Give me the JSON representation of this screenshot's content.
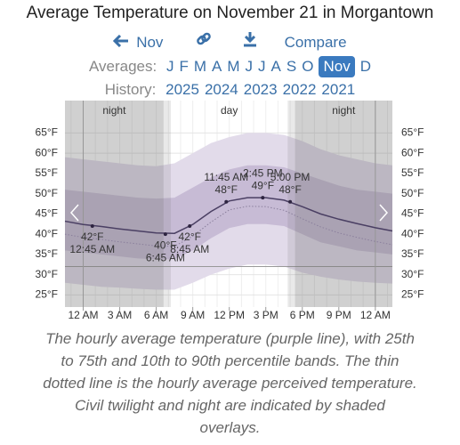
{
  "header": {
    "title": "Average Temperature on November 21 in Morgantown",
    "prev": "Nov",
    "compare": "Compare"
  },
  "averages": {
    "label": "Averages:",
    "months": [
      "J",
      "F",
      "M",
      "A",
      "M",
      "J",
      "J",
      "A",
      "S",
      "O",
      "Nov",
      "D"
    ],
    "selected": 10
  },
  "history": {
    "label": "History:",
    "years": [
      "2025",
      "2024",
      "2023",
      "2022",
      "2021"
    ]
  },
  "chart_data": {
    "type": "line",
    "x": [
      -1.5,
      0,
      1.5,
      3,
      4.5,
      6,
      7.5,
      9,
      10.5,
      12,
      13.5,
      15,
      16.5,
      18,
      19.5,
      21,
      22.5,
      24,
      25.4
    ],
    "xlim": [
      -1.5,
      25.4
    ],
    "xticks": [
      {
        "value": 0,
        "label": "12 AM"
      },
      {
        "value": 3,
        "label": "3 AM"
      },
      {
        "value": 6,
        "label": "6 AM"
      },
      {
        "value": 9,
        "label": "9 AM"
      },
      {
        "value": 12,
        "label": "12 PM"
      },
      {
        "value": 15,
        "label": "3 PM"
      },
      {
        "value": 18,
        "label": "6 PM"
      },
      {
        "value": 21,
        "label": "9 PM"
      },
      {
        "value": 24,
        "label": "12 AM"
      }
    ],
    "ylim": [
      22,
      73
    ],
    "yticks": [
      {
        "value": 25,
        "label": "25°F"
      },
      {
        "value": 30,
        "label": "30°F"
      },
      {
        "value": 35,
        "label": "35°F"
      },
      {
        "value": 40,
        "label": "40°F"
      },
      {
        "value": 45,
        "label": "45°F"
      },
      {
        "value": 50,
        "label": "50°F"
      },
      {
        "value": 55,
        "label": "55°F"
      },
      {
        "value": 60,
        "label": "60°F"
      },
      {
        "value": 65,
        "label": "65°F"
      }
    ],
    "grid": true,
    "freezing": 32,
    "bands": [
      {
        "color": "#e2dbea",
        "lower": [
          28,
          27.5,
          27,
          26.8,
          26.5,
          26.3,
          26.3,
          28,
          30,
          31.5,
          32.5,
          32.5,
          32,
          30.5,
          29.5,
          28.8,
          28.3,
          28,
          27.8
        ],
        "upper": [
          59,
          58.5,
          58,
          57.5,
          57,
          56.8,
          57.5,
          60,
          62.5,
          64,
          65,
          65,
          64.5,
          63,
          61,
          59.5,
          58.5,
          57.5,
          57
        ]
      },
      {
        "color": "#c7bbd5",
        "lower": [
          36,
          35.5,
          35,
          34.5,
          34,
          33.8,
          33.8,
          36,
          39,
          41.5,
          42.5,
          42.5,
          42,
          40,
          38,
          37,
          36,
          35.5,
          35
        ],
        "upper": [
          51,
          50.5,
          50,
          49.5,
          49,
          48.8,
          49,
          51.5,
          54,
          56,
          57,
          57,
          56.5,
          55,
          53.5,
          52,
          51,
          50.5,
          50
        ]
      }
    ],
    "series": [
      {
        "color": "#8a7f9c",
        "style": "dotted",
        "values": [
          40.0,
          39.2,
          38.7,
          38.1,
          37.6,
          37.1,
          37.0,
          39.5,
          43.0,
          46.0,
          46.9,
          46.8,
          45.9,
          43.8,
          41.8,
          40.3,
          39.2,
          38.2,
          37.4
        ]
      },
      {
        "color": "#4a3f63",
        "style": "solid",
        "values": [
          43.2,
          42.4,
          41.9,
          41.3,
          40.8,
          40.3,
          40.2,
          42.4,
          45.6,
          48.2,
          49.0,
          49.0,
          48.4,
          46.8,
          45.0,
          43.7,
          42.6,
          41.6,
          40.8
        ]
      }
    ],
    "regions": [
      {
        "label": "night",
        "start": -1.5,
        "end": 6.6
      },
      {
        "label": "day",
        "start": 7.2,
        "end": 16.8
      },
      {
        "label": "night",
        "start": 17.4,
        "end": 25.4
      }
    ],
    "twilight": [
      [
        6.6,
        7.2
      ],
      [
        16.8,
        17.4
      ]
    ],
    "annotations": [
      {
        "x": 0.75,
        "value": 42,
        "value_label": "42°F",
        "time_label": "12:45 AM"
      },
      {
        "x": 6.75,
        "value": 40,
        "value_label": "40°F",
        "time_label": "6:45 AM"
      },
      {
        "x": 8.75,
        "value": 42,
        "value_label": "42°F",
        "time_label": "8:45 AM"
      },
      {
        "x": 11.75,
        "value": 48,
        "value_label": "48°F",
        "time_label": "11:45 AM"
      },
      {
        "x": 14.75,
        "value": 49,
        "value_label": "49°F",
        "time_label": "2:45 PM"
      },
      {
        "x": 17,
        "value": 48,
        "value_label": "48°F",
        "time_label": "5:00 PM"
      }
    ]
  },
  "caption": "The hourly average temperature (purple line), with 25th to 75th and 10th to 90th percentile bands. The thin dotted line is the hourly average perceived temperature. Civil twilight and night are indicated by shaded overlays."
}
